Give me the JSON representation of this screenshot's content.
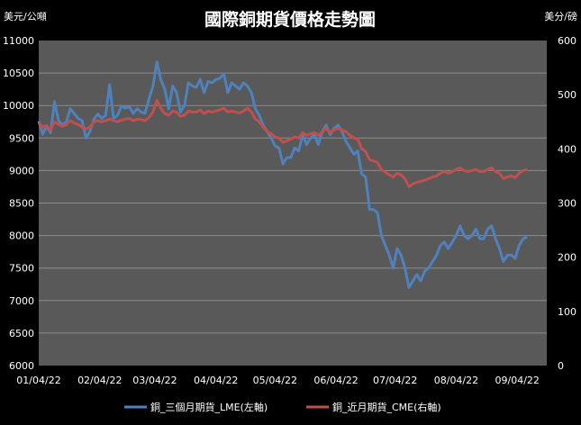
{
  "chart_data": {
    "type": "line",
    "title": "國際銅期貨價格走勢圖",
    "left_axis": {
      "unit": "美元/公噸",
      "min": 6000,
      "max": 11000,
      "step": 500,
      "ticks": [
        "6000",
        "6500",
        "7000",
        "7500",
        "8000",
        "8500",
        "9000",
        "9500",
        "10000",
        "10500",
        "11000"
      ]
    },
    "right_axis": {
      "unit": "美分/磅",
      "min": 0,
      "max": 600,
      "step": 100,
      "ticks": [
        "0",
        "100",
        "200",
        "300",
        "400",
        "500",
        "600"
      ]
    },
    "x_axis": {
      "min": 0,
      "max": 258,
      "ticks": [
        {
          "label": "01/04/22",
          "t": 0
        },
        {
          "label": "02/04/22",
          "t": 31
        },
        {
          "label": "03/04/22",
          "t": 59
        },
        {
          "label": "04/04/22",
          "t": 90
        },
        {
          "label": "05/04/22",
          "t": 120
        },
        {
          "label": "06/04/22",
          "t": 151
        },
        {
          "label": "07/04/22",
          "t": 181
        },
        {
          "label": "08/04/22",
          "t": 212
        },
        {
          "label": "09/04/22",
          "t": 243
        }
      ]
    },
    "grid": "horizontal",
    "legend_position": "bottom",
    "series": [
      {
        "name": "銅_三個月期貨_LME(左軸)",
        "axis": "left",
        "color": "#4f81bd",
        "points": [
          [
            0,
            9760
          ],
          [
            2,
            9560
          ],
          [
            4,
            9680
          ],
          [
            6,
            9580
          ],
          [
            8,
            10060
          ],
          [
            10,
            9770
          ],
          [
            12,
            9700
          ],
          [
            14,
            9750
          ],
          [
            16,
            9950
          ],
          [
            18,
            9880
          ],
          [
            20,
            9800
          ],
          [
            22,
            9770
          ],
          [
            24,
            9500
          ],
          [
            26,
            9600
          ],
          [
            28,
            9790
          ],
          [
            30,
            9870
          ],
          [
            32,
            9800
          ],
          [
            34,
            9850
          ],
          [
            36,
            10320
          ],
          [
            38,
            9800
          ],
          [
            40,
            9850
          ],
          [
            42,
            9990
          ],
          [
            44,
            9960
          ],
          [
            46,
            9980
          ],
          [
            48,
            9880
          ],
          [
            50,
            9950
          ],
          [
            52,
            9900
          ],
          [
            54,
            9880
          ],
          [
            56,
            10100
          ],
          [
            58,
            10300
          ],
          [
            60,
            10670
          ],
          [
            62,
            10400
          ],
          [
            64,
            10250
          ],
          [
            66,
            9950
          ],
          [
            68,
            10300
          ],
          [
            70,
            10200
          ],
          [
            72,
            9900
          ],
          [
            74,
            10000
          ],
          [
            76,
            10350
          ],
          [
            78,
            10300
          ],
          [
            80,
            10280
          ],
          [
            82,
            10400
          ],
          [
            84,
            10200
          ],
          [
            86,
            10370
          ],
          [
            88,
            10350
          ],
          [
            90,
            10400
          ],
          [
            92,
            10420
          ],
          [
            94,
            10490
          ],
          [
            96,
            10200
          ],
          [
            98,
            10350
          ],
          [
            100,
            10300
          ],
          [
            102,
            10250
          ],
          [
            104,
            10350
          ],
          [
            106,
            10300
          ],
          [
            108,
            10200
          ],
          [
            110,
            9950
          ],
          [
            112,
            9850
          ],
          [
            114,
            9700
          ],
          [
            116,
            9600
          ],
          [
            118,
            9500
          ],
          [
            120,
            9380
          ],
          [
            122,
            9350
          ],
          [
            124,
            9100
          ],
          [
            126,
            9200
          ],
          [
            128,
            9200
          ],
          [
            130,
            9350
          ],
          [
            132,
            9300
          ],
          [
            134,
            9550
          ],
          [
            136,
            9400
          ],
          [
            138,
            9500
          ],
          [
            140,
            9550
          ],
          [
            142,
            9400
          ],
          [
            144,
            9600
          ],
          [
            146,
            9700
          ],
          [
            148,
            9550
          ],
          [
            150,
            9650
          ],
          [
            152,
            9700
          ],
          [
            154,
            9600
          ],
          [
            156,
            9450
          ],
          [
            158,
            9350
          ],
          [
            160,
            9250
          ],
          [
            162,
            9300
          ],
          [
            164,
            8950
          ],
          [
            166,
            8900
          ],
          [
            168,
            8400
          ],
          [
            170,
            8400
          ],
          [
            172,
            8350
          ],
          [
            174,
            8000
          ],
          [
            176,
            7850
          ],
          [
            178,
            7700
          ],
          [
            180,
            7500
          ],
          [
            182,
            7800
          ],
          [
            184,
            7700
          ],
          [
            186,
            7500
          ],
          [
            188,
            7200
          ],
          [
            190,
            7300
          ],
          [
            192,
            7400
          ],
          [
            194,
            7300
          ],
          [
            196,
            7450
          ],
          [
            198,
            7500
          ],
          [
            200,
            7600
          ],
          [
            202,
            7700
          ],
          [
            204,
            7850
          ],
          [
            206,
            7900
          ],
          [
            208,
            7800
          ],
          [
            210,
            7900
          ],
          [
            212,
            8000
          ],
          [
            214,
            8150
          ],
          [
            216,
            8000
          ],
          [
            218,
            7950
          ],
          [
            220,
            8000
          ],
          [
            222,
            8100
          ],
          [
            224,
            7950
          ],
          [
            226,
            7950
          ],
          [
            228,
            8100
          ],
          [
            230,
            8150
          ],
          [
            232,
            7950
          ],
          [
            234,
            7800
          ],
          [
            236,
            7600
          ],
          [
            238,
            7700
          ],
          [
            240,
            7700
          ],
          [
            242,
            7650
          ],
          [
            244,
            7850
          ],
          [
            246,
            7950
          ],
          [
            248,
            7980
          ]
        ]
      },
      {
        "name": "銅_近月期貨_CME(右軸)",
        "axis": "right",
        "color": "#c0504d",
        "points": [
          [
            0,
            448
          ],
          [
            2,
            440
          ],
          [
            4,
            443
          ],
          [
            6,
            435
          ],
          [
            8,
            450
          ],
          [
            10,
            445
          ],
          [
            12,
            442
          ],
          [
            14,
            445
          ],
          [
            16,
            452
          ],
          [
            18,
            448
          ],
          [
            20,
            445
          ],
          [
            22,
            440
          ],
          [
            24,
            437
          ],
          [
            26,
            440
          ],
          [
            28,
            450
          ],
          [
            30,
            452
          ],
          [
            32,
            450
          ],
          [
            34,
            452
          ],
          [
            36,
            455
          ],
          [
            38,
            452
          ],
          [
            40,
            450
          ],
          [
            42,
            453
          ],
          [
            44,
            455
          ],
          [
            46,
            456
          ],
          [
            48,
            452
          ],
          [
            50,
            455
          ],
          [
            52,
            454
          ],
          [
            54,
            452
          ],
          [
            56,
            458
          ],
          [
            58,
            468
          ],
          [
            60,
            490
          ],
          [
            62,
            475
          ],
          [
            64,
            465
          ],
          [
            66,
            462
          ],
          [
            68,
            470
          ],
          [
            70,
            468
          ],
          [
            72,
            460
          ],
          [
            74,
            462
          ],
          [
            76,
            470
          ],
          [
            78,
            468
          ],
          [
            80,
            468
          ],
          [
            82,
            472
          ],
          [
            84,
            465
          ],
          [
            86,
            470
          ],
          [
            88,
            468
          ],
          [
            90,
            470
          ],
          [
            92,
            472
          ],
          [
            94,
            475
          ],
          [
            96,
            468
          ],
          [
            98,
            470
          ],
          [
            100,
            468
          ],
          [
            102,
            466
          ],
          [
            104,
            470
          ],
          [
            106,
            475
          ],
          [
            108,
            468
          ],
          [
            110,
            455
          ],
          [
            112,
            450
          ],
          [
            114,
            440
          ],
          [
            116,
            432
          ],
          [
            118,
            428
          ],
          [
            120,
            422
          ],
          [
            122,
            420
          ],
          [
            124,
            412
          ],
          [
            126,
            415
          ],
          [
            128,
            418
          ],
          [
            130,
            422
          ],
          [
            132,
            420
          ],
          [
            134,
            430
          ],
          [
            136,
            425
          ],
          [
            138,
            428
          ],
          [
            140,
            430
          ],
          [
            142,
            425
          ],
          [
            144,
            432
          ],
          [
            146,
            438
          ],
          [
            148,
            430
          ],
          [
            150,
            435
          ],
          [
            152,
            438
          ],
          [
            154,
            435
          ],
          [
            156,
            432
          ],
          [
            158,
            425
          ],
          [
            160,
            420
          ],
          [
            162,
            418
          ],
          [
            164,
            400
          ],
          [
            166,
            395
          ],
          [
            168,
            380
          ],
          [
            170,
            378
          ],
          [
            172,
            375
          ],
          [
            174,
            362
          ],
          [
            176,
            357
          ],
          [
            178,
            352
          ],
          [
            180,
            348
          ],
          [
            182,
            355
          ],
          [
            184,
            352
          ],
          [
            186,
            345
          ],
          [
            188,
            330
          ],
          [
            190,
            335
          ],
          [
            192,
            338
          ],
          [
            194,
            340
          ],
          [
            196,
            342
          ],
          [
            198,
            345
          ],
          [
            200,
            348
          ],
          [
            202,
            350
          ],
          [
            204,
            355
          ],
          [
            206,
            358
          ],
          [
            208,
            355
          ],
          [
            210,
            358
          ],
          [
            212,
            362
          ],
          [
            214,
            365
          ],
          [
            216,
            360
          ],
          [
            218,
            358
          ],
          [
            220,
            360
          ],
          [
            222,
            362
          ],
          [
            224,
            358
          ],
          [
            226,
            358
          ],
          [
            228,
            362
          ],
          [
            230,
            365
          ],
          [
            232,
            358
          ],
          [
            234,
            355
          ],
          [
            236,
            345
          ],
          [
            238,
            348
          ],
          [
            240,
            350
          ],
          [
            242,
            347
          ],
          [
            244,
            355
          ],
          [
            246,
            360
          ],
          [
            248,
            362
          ]
        ]
      }
    ]
  }
}
